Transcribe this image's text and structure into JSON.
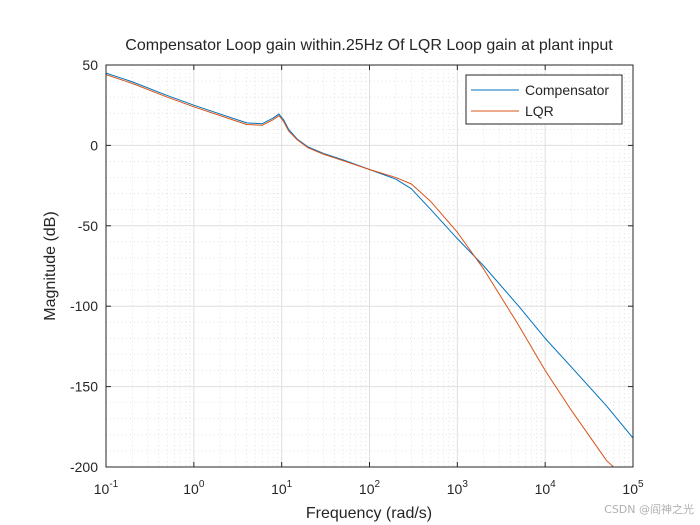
{
  "chart_data": {
    "type": "line",
    "title": "Compensator Loop gain within.25Hz Of LQR Loop gain at plant input",
    "xlabel": "Frequency  (rad/s)",
    "ylabel": "Magnitude (dB)",
    "xscale": "log",
    "xlim": [
      0.1,
      100000
    ],
    "ylim": [
      -200,
      50
    ],
    "x_ticks": [
      {
        "value": 0.1,
        "base": "10",
        "exp": "-1"
      },
      {
        "value": 1,
        "base": "10",
        "exp": "0"
      },
      {
        "value": 10,
        "base": "10",
        "exp": "1"
      },
      {
        "value": 100,
        "base": "10",
        "exp": "2"
      },
      {
        "value": 1000,
        "base": "10",
        "exp": "3"
      },
      {
        "value": 10000,
        "base": "10",
        "exp": "4"
      },
      {
        "value": 100000,
        "base": "10",
        "exp": "5"
      }
    ],
    "y_ticks": [
      {
        "value": 50,
        "label": "50"
      },
      {
        "value": 0,
        "label": "0"
      },
      {
        "value": -50,
        "label": "-50"
      },
      {
        "value": -100,
        "label": "-100"
      },
      {
        "value": -150,
        "label": "-150"
      },
      {
        "value": -200,
        "label": "-200"
      }
    ],
    "grid": true,
    "minor_grid": true,
    "legend_position": "top-right",
    "series": [
      {
        "name": "Compensator",
        "color": "#0072BD",
        "points": [
          [
            0.1,
            45
          ],
          [
            0.2,
            39.5
          ],
          [
            0.5,
            31
          ],
          [
            1,
            25
          ],
          [
            2,
            19.5
          ],
          [
            4,
            14
          ],
          [
            6,
            13.5
          ],
          [
            8,
            17
          ],
          [
            9.3,
            19.5
          ],
          [
            10.5,
            16
          ],
          [
            12,
            10
          ],
          [
            15,
            4
          ],
          [
            20,
            -1
          ],
          [
            30,
            -5
          ],
          [
            50,
            -9
          ],
          [
            100,
            -15
          ],
          [
            200,
            -21
          ],
          [
            300,
            -27
          ],
          [
            500,
            -40
          ],
          [
            1000,
            -58
          ],
          [
            2000,
            -75
          ],
          [
            5000,
            -100
          ],
          [
            10000,
            -120
          ],
          [
            20000,
            -138
          ],
          [
            50000,
            -162
          ],
          [
            100000,
            -182
          ]
        ]
      },
      {
        "name": "LQR",
        "color": "#D95319",
        "points": [
          [
            0.1,
            44
          ],
          [
            0.2,
            38.5
          ],
          [
            0.5,
            30
          ],
          [
            1,
            24
          ],
          [
            2,
            18.5
          ],
          [
            4,
            13
          ],
          [
            6,
            12.5
          ],
          [
            8,
            16
          ],
          [
            9.3,
            18.5
          ],
          [
            10.5,
            15
          ],
          [
            12,
            9
          ],
          [
            15,
            3.5
          ],
          [
            20,
            -1.5
          ],
          [
            30,
            -5.5
          ],
          [
            50,
            -9.5
          ],
          [
            100,
            -15
          ],
          [
            200,
            -20
          ],
          [
            300,
            -24
          ],
          [
            500,
            -35
          ],
          [
            1000,
            -54
          ],
          [
            2000,
            -77
          ],
          [
            5000,
            -112
          ],
          [
            10000,
            -140
          ],
          [
            20000,
            -165
          ],
          [
            50000,
            -196
          ],
          [
            60000,
            -200
          ]
        ]
      }
    ]
  },
  "watermark": "CSDN @阎神之光"
}
